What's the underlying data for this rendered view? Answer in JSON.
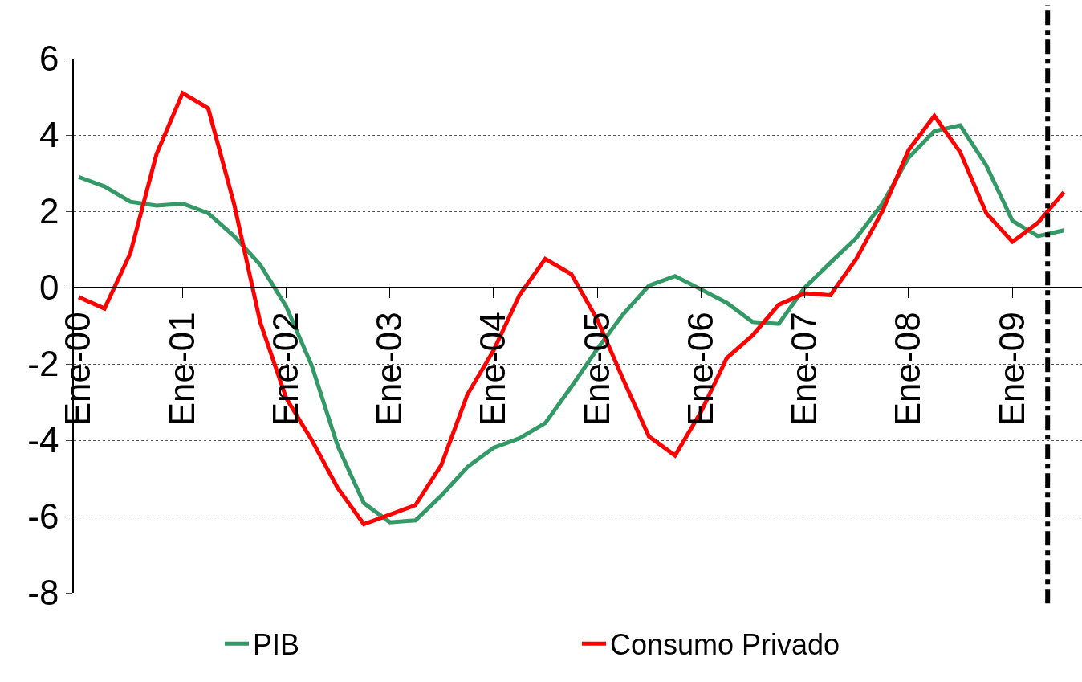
{
  "chart_data": {
    "type": "line",
    "x": [
      "2000-01",
      "2000-04",
      "2000-07",
      "2000-10",
      "2001-01",
      "2001-04",
      "2001-07",
      "2001-10",
      "2002-01",
      "2002-04",
      "2002-07",
      "2002-10",
      "2003-01",
      "2003-04",
      "2003-07",
      "2003-10",
      "2004-01",
      "2004-04",
      "2004-07",
      "2004-10",
      "2005-01",
      "2005-04",
      "2005-07",
      "2005-10",
      "2006-01",
      "2006-04",
      "2006-07",
      "2006-10",
      "2007-01",
      "2007-04",
      "2007-07",
      "2007-10",
      "2008-01",
      "2008-04",
      "2008-07",
      "2008-10",
      "2009-01",
      "2009-04",
      "2009-07"
    ],
    "series": [
      {
        "name": "PIB",
        "color": "#339966",
        "values": [
          2.9,
          2.65,
          2.25,
          2.15,
          2.2,
          1.95,
          1.35,
          0.6,
          -0.5,
          -2.05,
          -4.15,
          -5.65,
          -6.15,
          -6.1,
          -5.45,
          -4.7,
          -4.2,
          -3.95,
          -3.55,
          -2.6,
          -1.6,
          -0.7,
          0.05,
          0.3,
          -0.05,
          -0.4,
          -0.9,
          -0.95,
          0.0,
          0.65,
          1.3,
          2.2,
          3.4,
          4.1,
          4.25,
          3.2,
          1.75,
          1.35,
          1.5
        ]
      },
      {
        "name": "Consumo Privado",
        "color": "#ff0000",
        "values": [
          -0.25,
          -0.55,
          0.9,
          3.5,
          5.1,
          4.7,
          2.2,
          -0.9,
          -2.9,
          -4.0,
          -5.25,
          -6.2,
          -5.95,
          -5.7,
          -4.65,
          -2.8,
          -1.65,
          -0.2,
          0.75,
          0.35,
          -0.85,
          -2.4,
          -3.9,
          -4.4,
          -3.25,
          -1.85,
          -1.25,
          -0.45,
          -0.15,
          -0.2,
          0.75,
          2.0,
          3.6,
          4.5,
          3.55,
          1.95,
          1.2,
          1.7,
          2.5
        ]
      }
    ],
    "xlim": [
      "1999-12-15",
      "2009-09-03"
    ],
    "xticks": [
      {
        "value": "2000-01",
        "label": "Ene-00"
      },
      {
        "value": "2001-01",
        "label": "Ene-01"
      },
      {
        "value": "2002-01",
        "label": "Ene-02"
      },
      {
        "value": "2003-01",
        "label": "Ene-03"
      },
      {
        "value": "2004-01",
        "label": "Ene-04"
      },
      {
        "value": "2005-01",
        "label": "Ene-05"
      },
      {
        "value": "2006-01",
        "label": "Ene-06"
      },
      {
        "value": "2007-01",
        "label": "Ene-07"
      },
      {
        "value": "2008-01",
        "label": "Ene-08"
      },
      {
        "value": "2009-01",
        "label": "Ene-09"
      }
    ],
    "ylim": [
      -8,
      6
    ],
    "yticks": [
      -8,
      -6,
      -4,
      -2,
      0,
      2,
      4,
      6
    ],
    "ref_lines": [
      {
        "axis": "x",
        "value": "2009-05-05",
        "color": "#000000",
        "line_style": "dashed"
      }
    ],
    "grid": "y",
    "legend": "bottom",
    "line_style": "solid",
    "marker": "none"
  }
}
